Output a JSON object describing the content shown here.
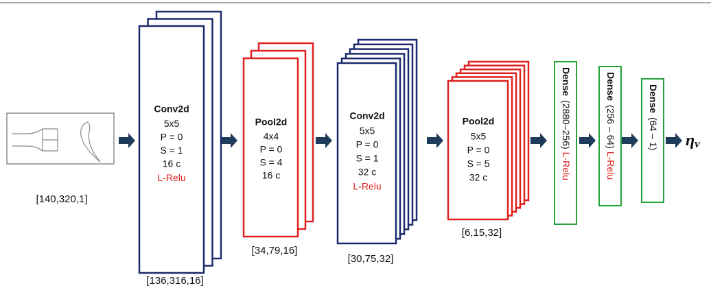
{
  "input": {
    "shape": "[140,320,1]"
  },
  "layers": [
    {
      "title": "Conv2d",
      "lines": [
        "5x5",
        "P = 0",
        "S = 1",
        "16 c"
      ],
      "activation": "L-Relu",
      "shape": "[136,316,16]"
    },
    {
      "title": "Pool2d",
      "lines": [
        "4x4",
        "P = 0",
        "S = 4",
        "16 c"
      ],
      "shape": "[34,79,16]"
    },
    {
      "title": "Conv2d",
      "lines": [
        "5x5",
        "P = 0",
        "S = 1",
        "32 c"
      ],
      "activation": "L-Relu",
      "shape": "[30,75,32]"
    },
    {
      "title": "Pool2d",
      "lines": [
        "5x5",
        "P = 0",
        "S = 5",
        "32 c"
      ],
      "shape": "[6,15,32]"
    }
  ],
  "dense": [
    {
      "title": "Dense",
      "size": "(2880–256)",
      "activation": "L-Relu"
    },
    {
      "title": "Dense",
      "size": "(256 – 64)",
      "activation": "L-Relu"
    },
    {
      "title": "Dense",
      "size": "(64 – 1)"
    }
  ],
  "output": {
    "symbol": "η",
    "subscript": "v"
  }
}
